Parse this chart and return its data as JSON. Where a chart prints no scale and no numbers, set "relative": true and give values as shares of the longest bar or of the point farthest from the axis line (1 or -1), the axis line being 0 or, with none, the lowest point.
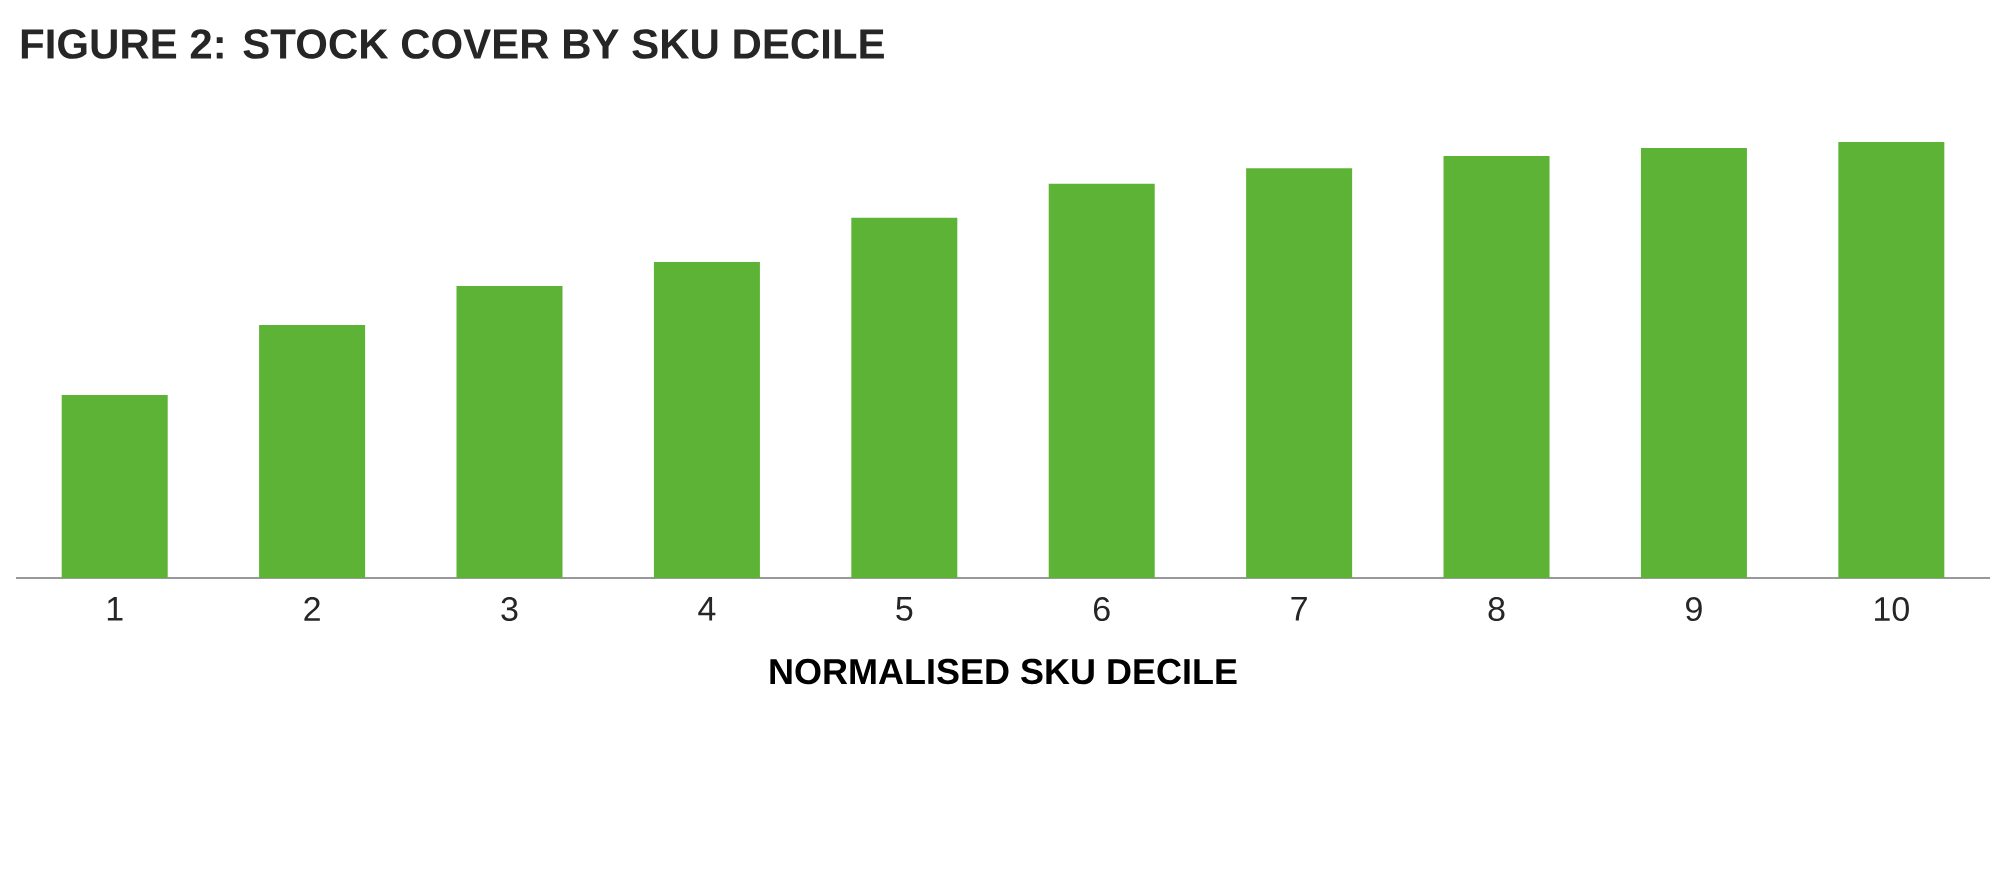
{
  "chart_data": {
    "type": "bar",
    "title": "FIGURE 2: STOCK COVER BY SKU DECILE",
    "xlabel": "NORMALISED SKU DECILE",
    "relative": true,
    "categories": [
      "1",
      "2",
      "3",
      "4",
      "5",
      "6",
      "7",
      "8",
      "9",
      "10"
    ],
    "values": [
      0.42,
      0.58,
      0.67,
      0.725,
      0.826,
      0.904,
      0.94,
      0.968,
      0.986,
      1
    ],
    "color": "#5cb335"
  }
}
